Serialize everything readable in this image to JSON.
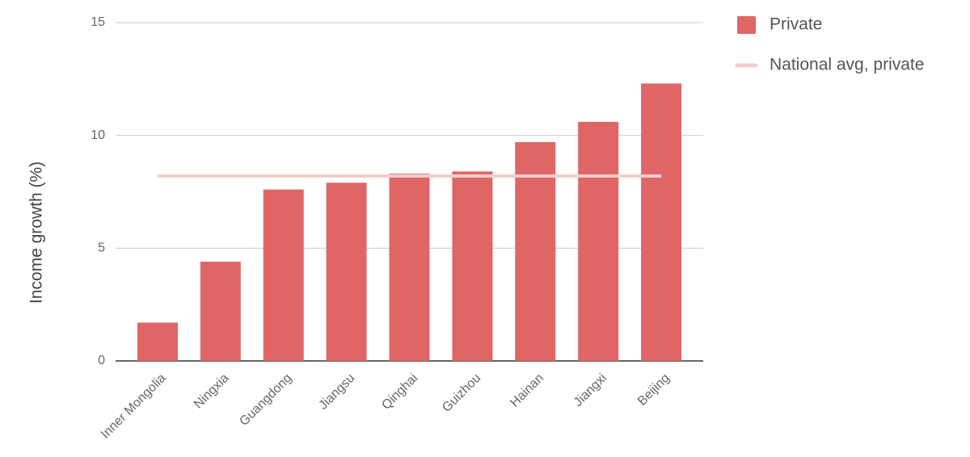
{
  "chart_data": {
    "type": "bar",
    "y_label": "Income growth (%)",
    "categories": [
      "Inner Mongolia",
      "Ningxia",
      "Guangdong",
      "Jiangsu",
      "Qinghai",
      "Guizhou",
      "Hainan",
      "Jiangxi",
      "Beijing"
    ],
    "series": [
      {
        "name": "Private",
        "type": "bar",
        "color": "#e06666",
        "values": [
          1.7,
          4.4,
          7.6,
          7.9,
          8.3,
          8.4,
          9.7,
          10.6,
          12.3
        ]
      },
      {
        "name": "National avg, private",
        "type": "line",
        "color": "#f4cccc",
        "values": [
          8.2,
          8.2,
          8.2,
          8.2,
          8.2,
          8.2,
          8.2,
          8.2,
          8.2
        ]
      }
    ],
    "ylim": [
      0,
      15
    ],
    "yticks": [
      0,
      5,
      10,
      15
    ],
    "grid": true,
    "legend": "right"
  }
}
